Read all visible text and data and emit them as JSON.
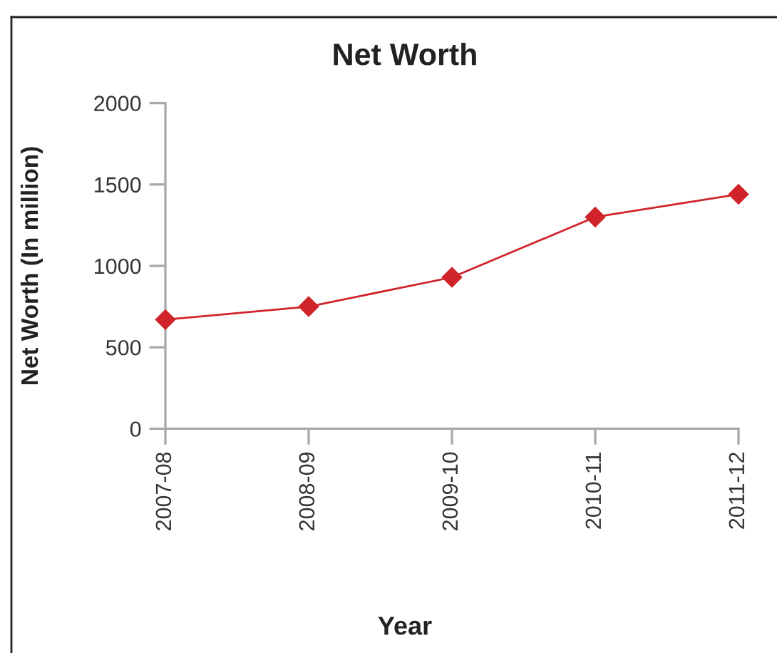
{
  "chart_data": {
    "type": "line",
    "title": "Net Worth",
    "xlabel": "Year",
    "ylabel": "Net Worth (In million)",
    "categories": [
      "2007-08",
      "2008-09",
      "2009-10",
      "2010-11",
      "2011-12"
    ],
    "series": [
      {
        "color": "#d0232a",
        "values": [
          670,
          750,
          930,
          1300,
          1440
        ]
      }
    ],
    "ylim": [
      0,
      2000
    ],
    "yticks": [
      0,
      500,
      1000,
      1500,
      2000
    ],
    "marker": "diamond",
    "line_style": "solid",
    "grid": false,
    "legend": false
  }
}
